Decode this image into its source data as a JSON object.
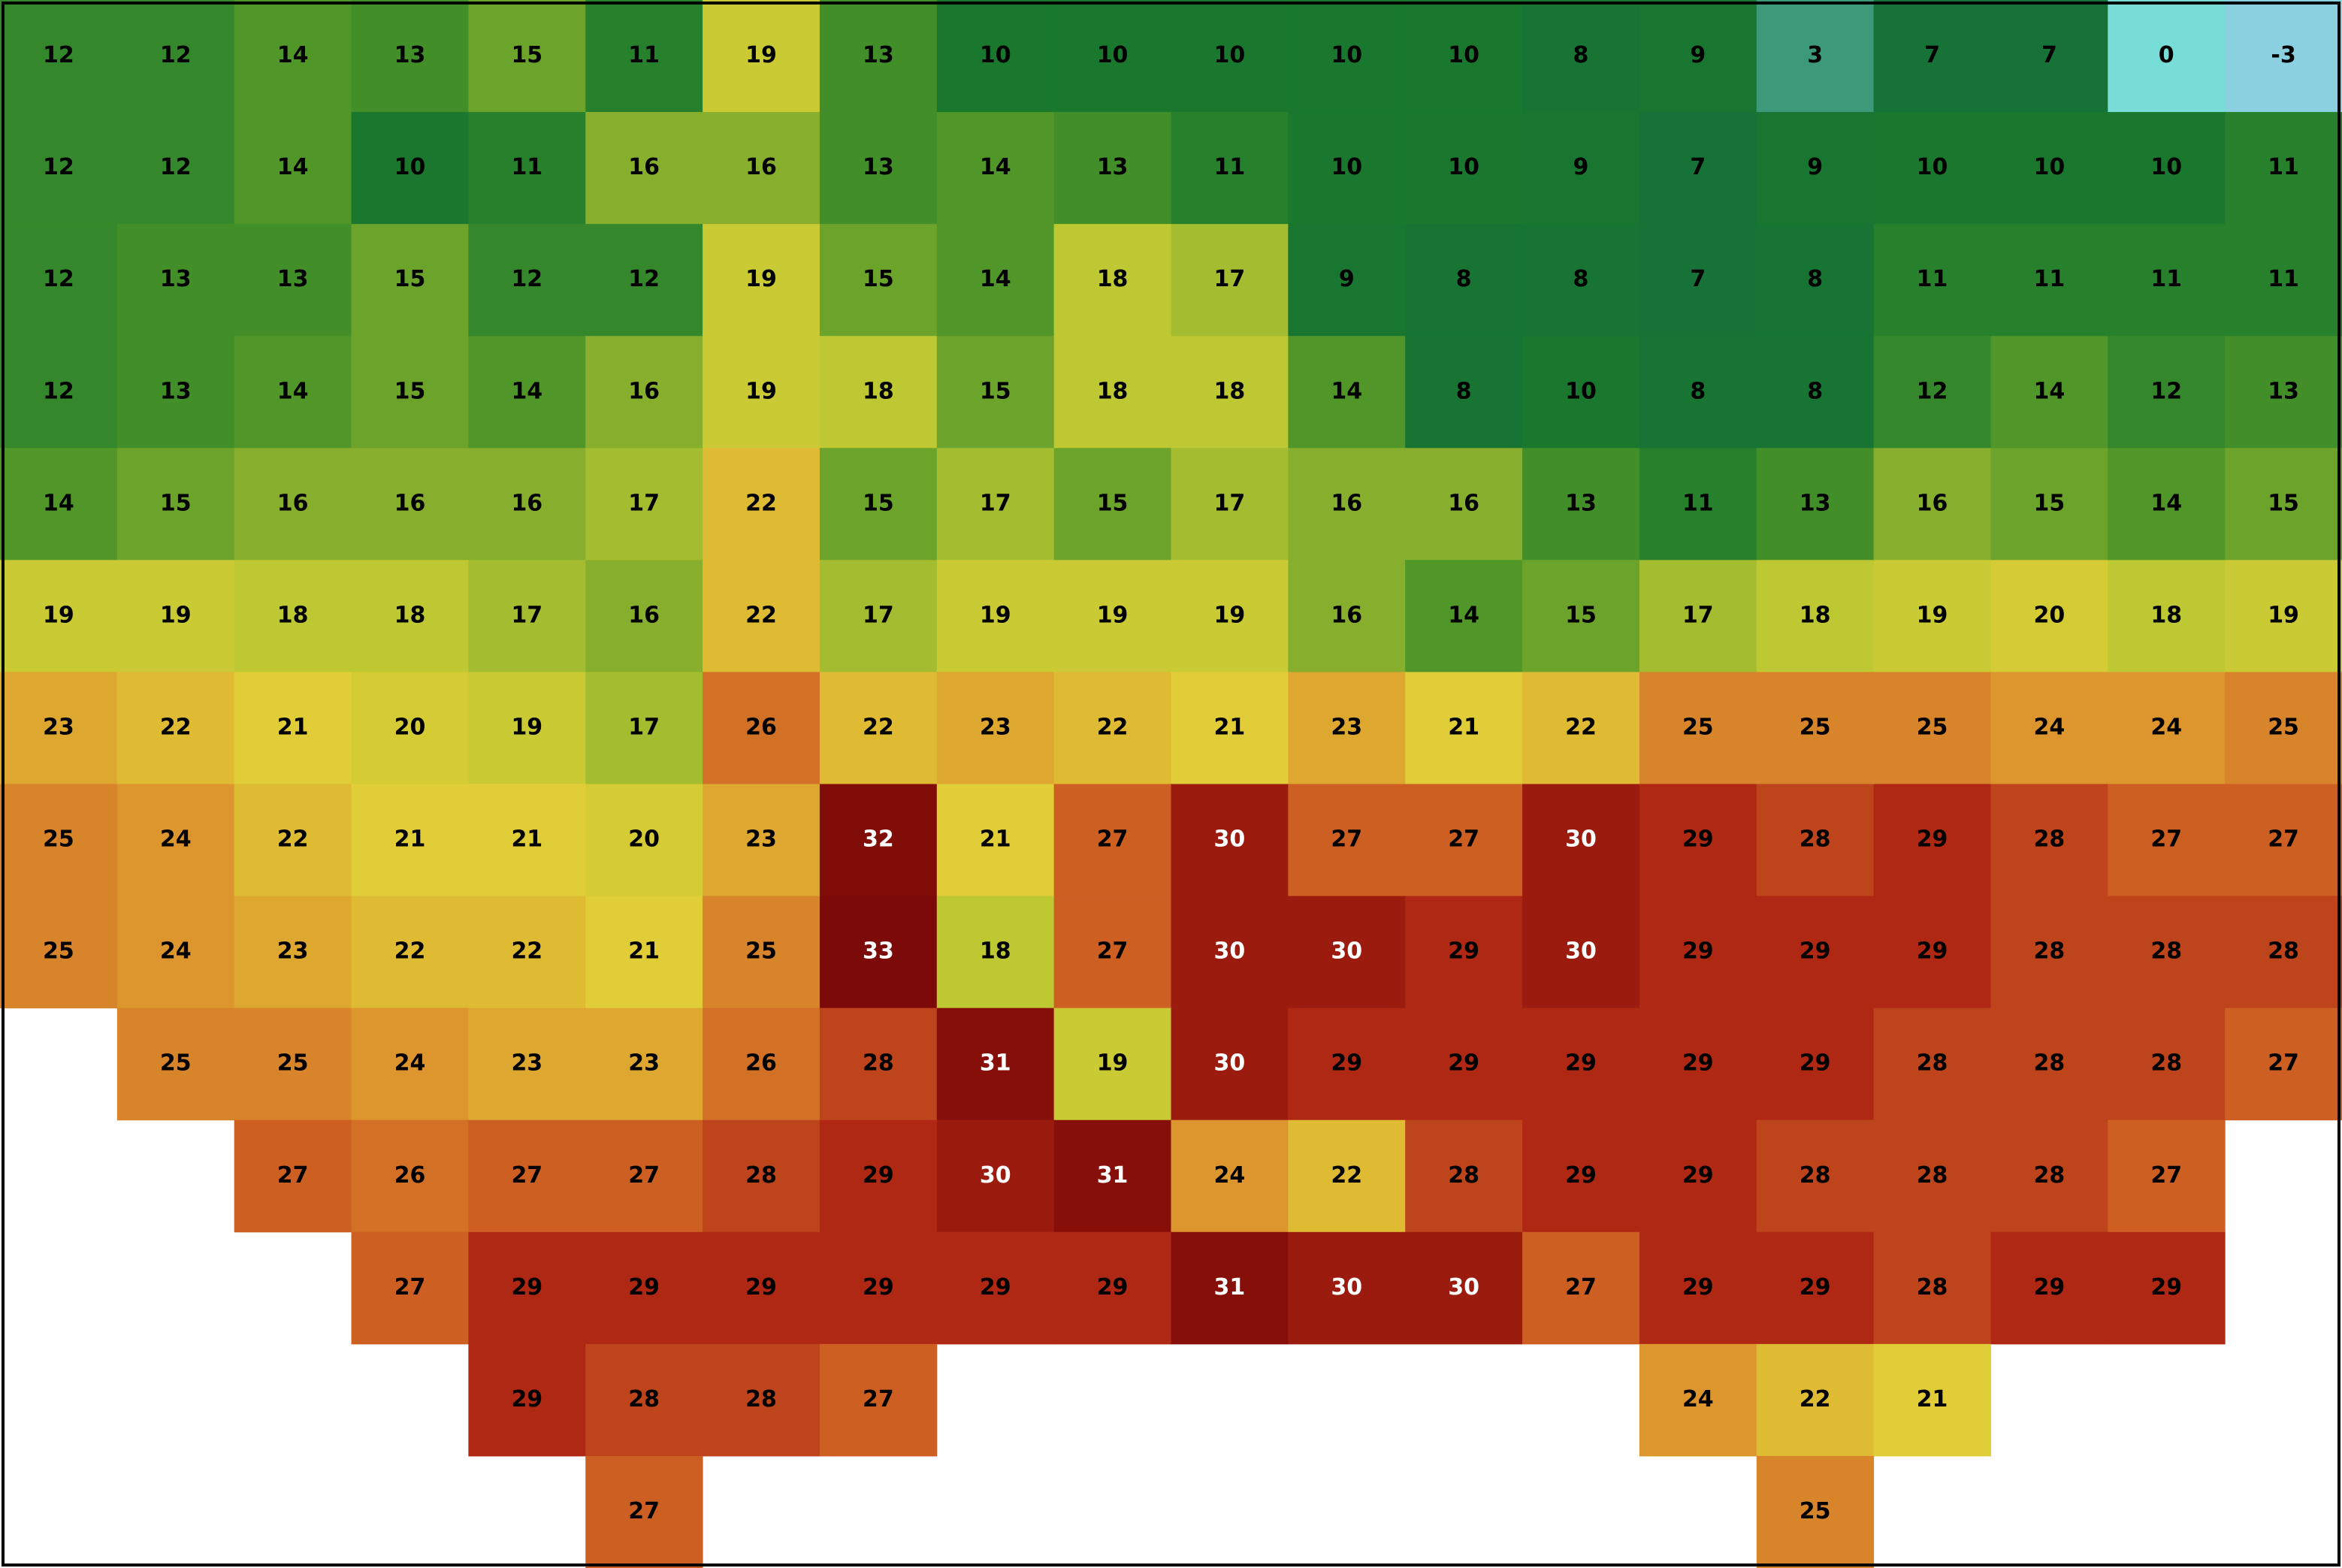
{
  "map": {
    "rows": [
      [
        12,
        12,
        14,
        13,
        15,
        11,
        19,
        13,
        10,
        10,
        10,
        10,
        10,
        8,
        9,
        3,
        7,
        7,
        0,
        -3
      ],
      [
        12,
        12,
        14,
        10,
        11,
        16,
        16,
        13,
        14,
        13,
        11,
        10,
        10,
        9,
        7,
        9,
        10,
        10,
        10,
        11
      ],
      [
        12,
        13,
        13,
        15,
        12,
        12,
        19,
        15,
        14,
        18,
        17,
        9,
        8,
        8,
        7,
        8,
        11,
        11,
        11,
        11
      ],
      [
        12,
        13,
        14,
        15,
        14,
        16,
        19,
        18,
        15,
        18,
        18,
        14,
        8,
        10,
        8,
        8,
        12,
        14,
        12,
        13
      ],
      [
        14,
        15,
        16,
        16,
        16,
        17,
        22,
        15,
        17,
        15,
        17,
        16,
        16,
        13,
        11,
        13,
        16,
        15,
        14,
        15
      ],
      [
        19,
        19,
        18,
        18,
        17,
        16,
        22,
        17,
        19,
        19,
        19,
        16,
        14,
        15,
        17,
        18,
        19,
        20,
        18,
        19
      ],
      [
        23,
        22,
        21,
        20,
        19,
        17,
        26,
        22,
        23,
        22,
        21,
        23,
        21,
        22,
        25,
        25,
        25,
        24,
        24,
        25
      ],
      [
        25,
        24,
        22,
        21,
        21,
        20,
        23,
        32,
        21,
        27,
        30,
        27,
        27,
        30,
        29,
        28,
        29,
        28,
        27,
        27
      ],
      [
        25,
        24,
        23,
        22,
        22,
        21,
        25,
        33,
        18,
        27,
        30,
        30,
        29,
        30,
        29,
        29,
        29,
        28,
        28,
        28
      ],
      [
        null,
        25,
        25,
        24,
        23,
        23,
        26,
        28,
        31,
        19,
        30,
        29,
        29,
        29,
        29,
        29,
        28,
        28,
        28,
        27
      ],
      [
        null,
        null,
        27,
        26,
        27,
        27,
        28,
        29,
        30,
        31,
        24,
        22,
        28,
        29,
        29,
        28,
        28,
        28,
        27,
        null
      ],
      [
        null,
        null,
        null,
        27,
        29,
        29,
        29,
        29,
        29,
        29,
        31,
        30,
        30,
        27,
        29,
        29,
        28,
        29,
        29,
        null
      ],
      [
        null,
        null,
        null,
        null,
        29,
        28,
        28,
        27,
        null,
        null,
        null,
        null,
        null,
        null,
        24,
        22,
        21,
        null,
        null,
        null
      ],
      [
        null,
        null,
        null,
        null,
        null,
        27,
        null,
        null,
        null,
        null,
        null,
        null,
        null,
        null,
        null,
        25,
        null,
        null,
        null,
        null
      ]
    ]
  }
}
